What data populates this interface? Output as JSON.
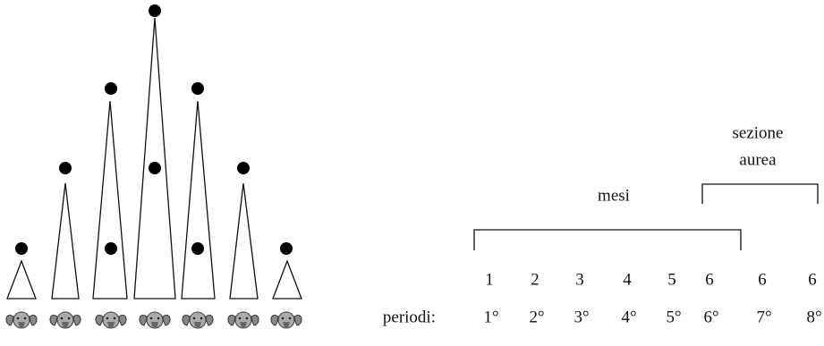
{
  "brackets": {
    "golden_section": [
      "sezione",
      "aurea"
    ],
    "months": "mesi"
  },
  "months": [
    1,
    2,
    3,
    4,
    5,
    6,
    6,
    6
  ],
  "periods": {
    "label": "periodi:",
    "items": [
      "1°",
      "2°",
      "3°",
      "4°",
      "5°",
      "6°",
      "7°",
      "8°"
    ]
  }
}
